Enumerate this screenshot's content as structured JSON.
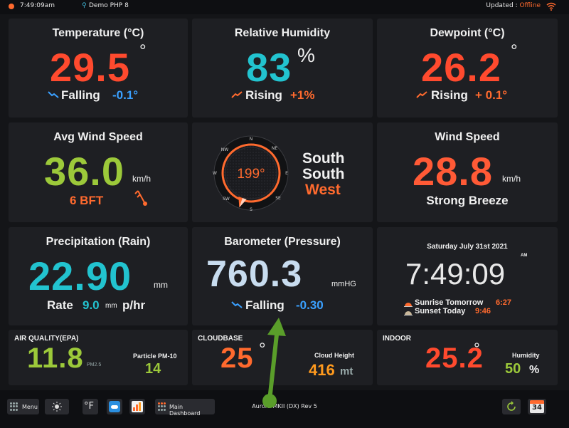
{
  "topbar": {
    "time": "7:49:09am",
    "location": "Demo PHP 8",
    "updated_label": "Updated : ",
    "updated_status": "Offline"
  },
  "temperature": {
    "title": "Temperature (°C)",
    "value": "29.5",
    "unit": "°",
    "trend": "Falling",
    "change": "-0.1°"
  },
  "humidity": {
    "title": "Relative Humidity",
    "value": "83",
    "unit": "%",
    "trend": "Rising",
    "change": "+1%"
  },
  "dewpoint": {
    "title": "Dewpoint (°C)",
    "value": "26.2",
    "unit": "°",
    "trend": "Rising",
    "change": "+ 0.1°"
  },
  "avg_wind": {
    "title": "Avg Wind Speed",
    "value": "36.0",
    "unit": "km/h",
    "bft": "6 BFT"
  },
  "compass": {
    "direction_deg": "199°",
    "bearing": 199,
    "labels": {
      "n": "N",
      "ne": "NE",
      "e": "E",
      "se": "SE",
      "s": "S",
      "sw": "SW",
      "w": "W",
      "nw": "NW"
    },
    "line1": "South",
    "line2": "South",
    "line3": "West"
  },
  "wind_speed": {
    "title": "Wind Speed",
    "value": "28.8",
    "unit": "km/h",
    "description": "Strong Breeze"
  },
  "precipitation": {
    "title": "Precipitation (Rain)",
    "value": "22.90",
    "unit": "mm",
    "rate_label": "Rate",
    "rate_value": "9.0",
    "rate_unit": "mm",
    "rate_suffix": "p/hr"
  },
  "barometer": {
    "title": "Barometer (Pressure)",
    "value": "760.3",
    "unit": "mmHG",
    "trend": "Falling",
    "change": "-0.30"
  },
  "clock": {
    "date": "Saturday July 31st 2021",
    "time": "7:49:09",
    "ampm": "AM",
    "sunrise_label": "Sunrise Tomorrow",
    "sunrise_time": "6:27",
    "sunset_label": "Sunset Today",
    "sunset_time": "9:46"
  },
  "air_quality": {
    "title": "AIR QUALITY(EPA)",
    "value": "11.8",
    "unit": "PM2.5",
    "pm10_label": "Particle PM-10",
    "pm10_value": "14"
  },
  "cloudbase": {
    "title": "CLOUDBASE",
    "value": "25",
    "unit": "°",
    "height_label": "Cloud Height",
    "height_value": "416",
    "height_unit": "mt"
  },
  "indoor": {
    "title": "INDOOR",
    "value": "25.2",
    "unit": "°",
    "humidity_label": "Humidity",
    "humidity_value": "50",
    "humidity_unit": "%"
  },
  "bottombar": {
    "menu_label": "Menu",
    "temp_unit": "°F",
    "main_dashboard": "Main Dashboard",
    "footer": "Aurora MKII (DX) Rev 5",
    "calendar_day": "34"
  },
  "colors": {
    "accent_red": "#ff4a2e",
    "accent_orange": "#ff6a2e",
    "accent_cyan": "#22c3cf",
    "accent_green": "#9cc93a",
    "annotation_green": "#5a9e2a"
  }
}
